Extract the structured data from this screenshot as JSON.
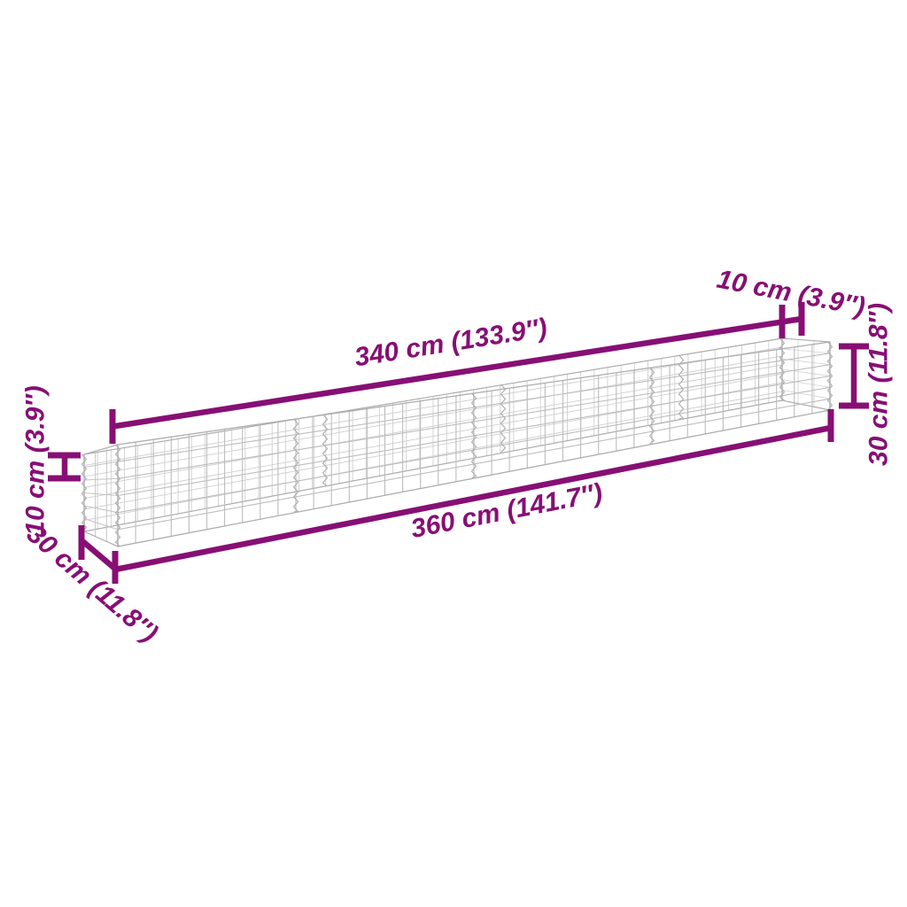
{
  "figure": {
    "type": "product-dimension-diagram",
    "product": "gabion-raised-bed-wire-mesh-basket",
    "background_color": "#ffffff",
    "accent_color": "#870f74",
    "mesh_color": "#bdbdbd",
    "mesh_back_color": "#cfcfcf"
  },
  "dimensions": {
    "top_length": {
      "cm": 340,
      "in": 133.9,
      "label": "340 cm (133.9″)"
    },
    "top_end_depth": {
      "cm": 10,
      "in": 3.9,
      "label": "10 cm (3.9″)"
    },
    "right_height": {
      "cm": 30,
      "in": 11.8,
      "label": "30 cm (11.8″)"
    },
    "left_top_height": {
      "cm": 10,
      "in": 3.9,
      "label": "10 cm (3.9″)"
    },
    "bottom_depth": {
      "cm": 30,
      "in": 11.8,
      "label": "30 cm (11.8″)"
    },
    "bottom_length": {
      "cm": 360,
      "in": 141.7,
      "label": "360 cm (141.7″)"
    }
  }
}
